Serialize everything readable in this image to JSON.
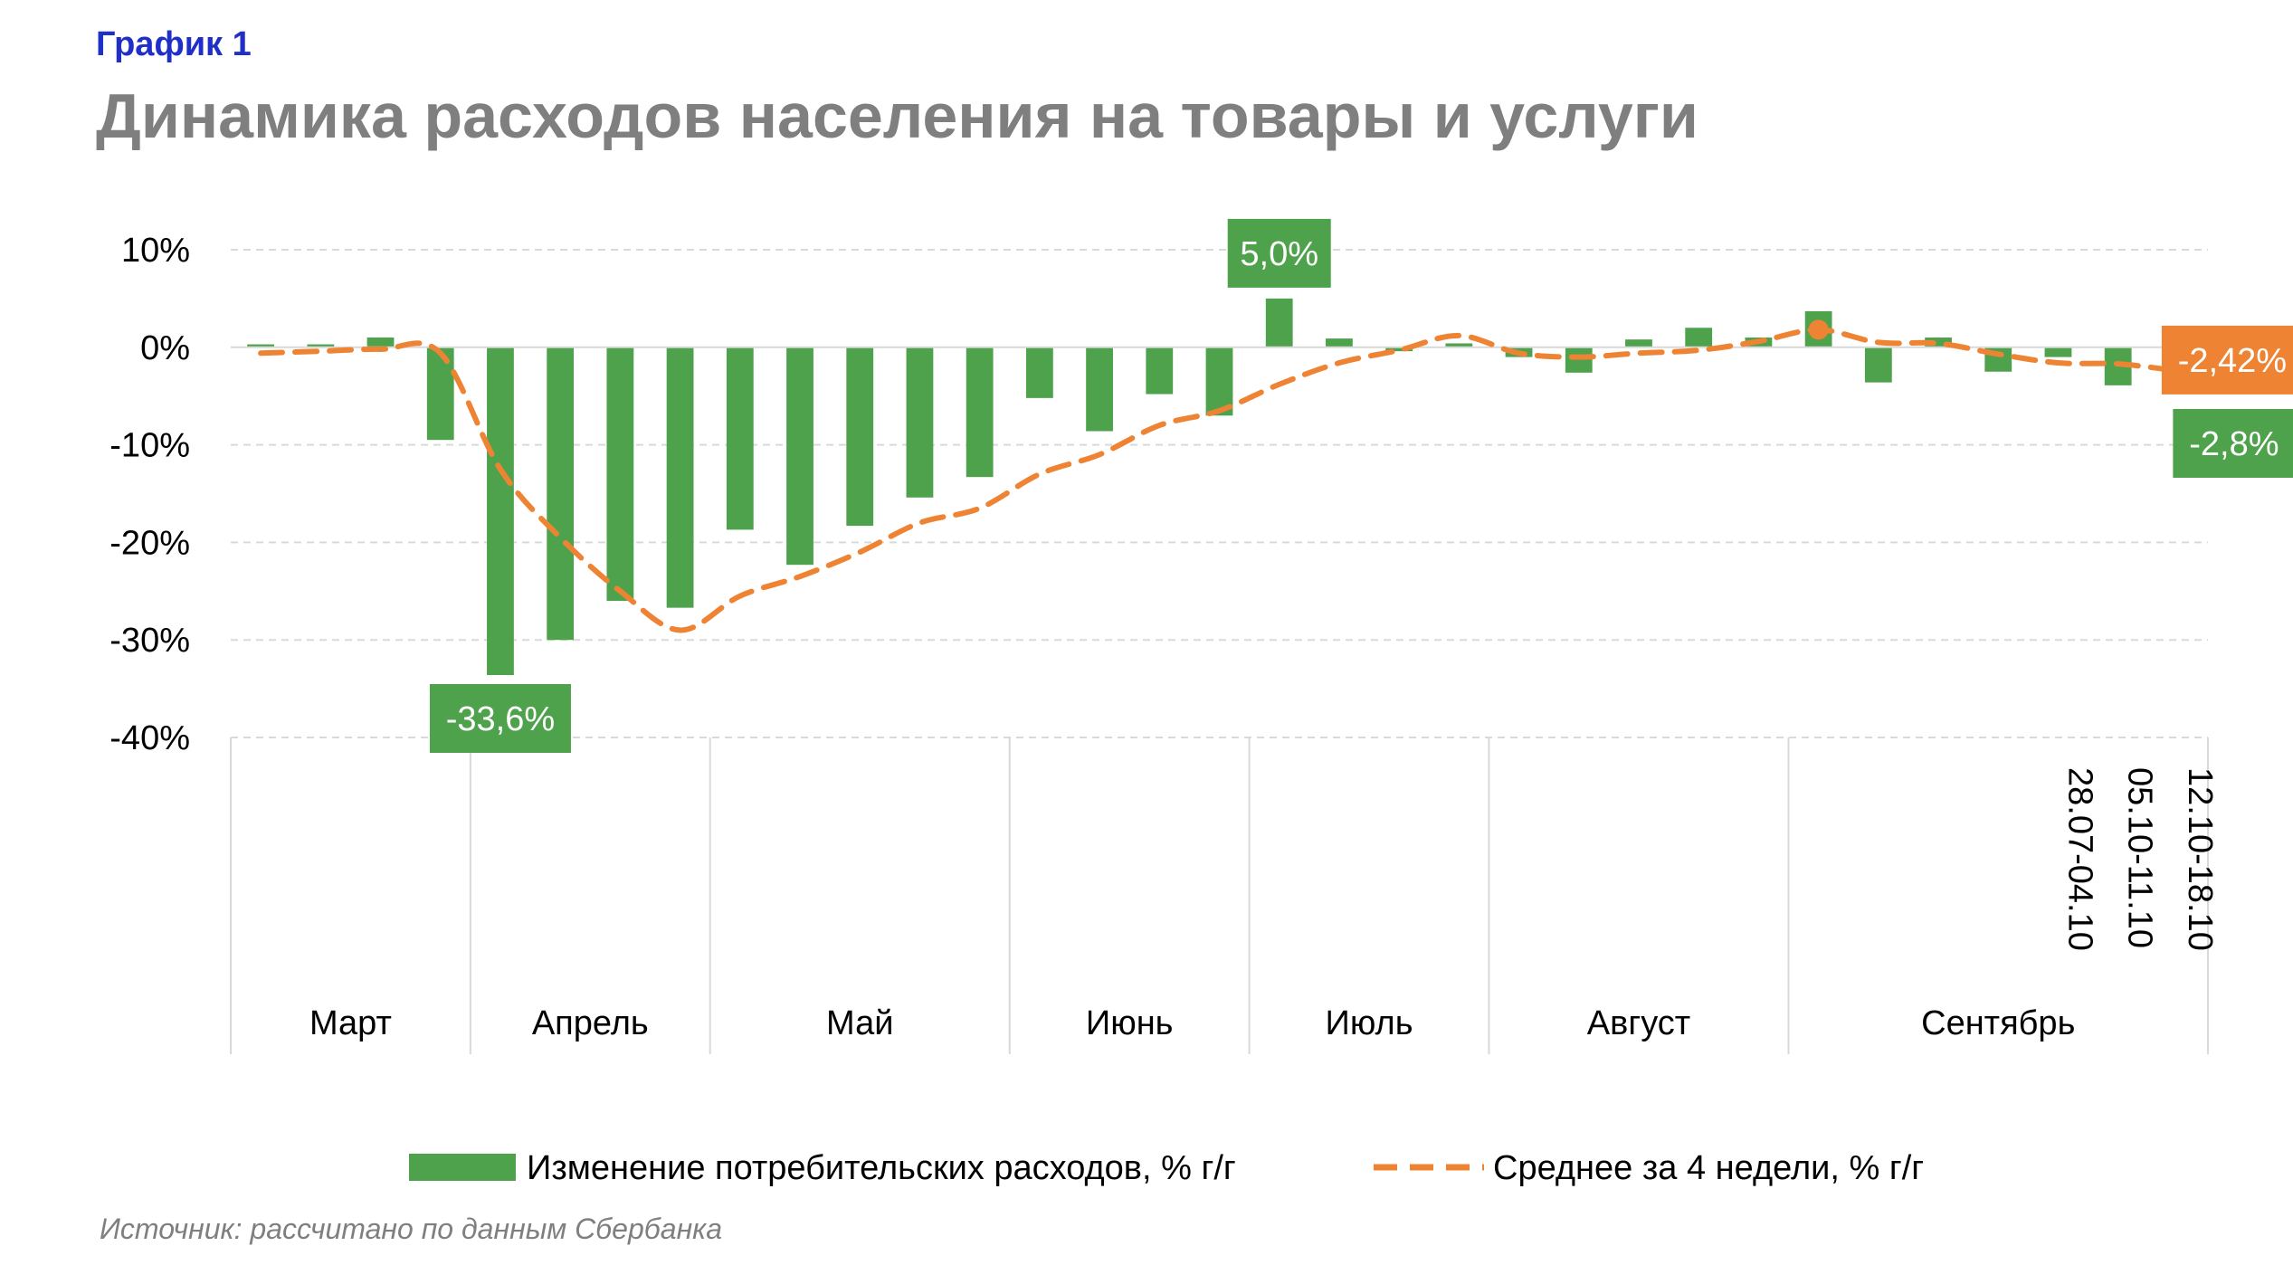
{
  "header": {
    "kicker": "График 1",
    "title": "Динамика расходов населения на товары и услуги"
  },
  "source": "Источник: рассчитано по данным Сбербанка",
  "colors": {
    "bar": "#4ea24b",
    "line": "#ee8433",
    "grid": "#d9d9d9",
    "axis": "#d9d9d9",
    "kicker": "#1f2fc7",
    "title": "#7f7f7f"
  },
  "chart_data": {
    "type": "bar",
    "title": "Динамика расходов населения на товары и услуги",
    "ylim": [
      -40,
      10
    ],
    "y_ticks": [
      "10%",
      "0%",
      "-10%",
      "-20%",
      "-30%",
      "-40%"
    ],
    "y_tick_values": [
      10,
      0,
      -10,
      -20,
      -30,
      -40
    ],
    "grid": true,
    "legend_position": "bottom",
    "months": [
      {
        "label": "Март",
        "weeks": 4
      },
      {
        "label": "Апрель",
        "weeks": 4
      },
      {
        "label": "Май",
        "weeks": 5
      },
      {
        "label": "Июнь",
        "weeks": 4
      },
      {
        "label": "Июль",
        "weeks": 4
      },
      {
        "label": "Август",
        "weeks": 5
      },
      {
        "label": "Сентябрь",
        "weeks": 7
      }
    ],
    "week_labels": [
      {
        "index": 30,
        "label": "28.07-04.10"
      },
      {
        "index": 31,
        "label": "05.10-11.10"
      },
      {
        "index": 32,
        "label": "12.10-18.10"
      }
    ],
    "series": [
      {
        "name": "Изменение потребительских расходов, % г/г",
        "kind": "bar",
        "values": [
          0.3,
          0.3,
          1.0,
          -9.5,
          -33.6,
          -30.0,
          -26.0,
          -26.7,
          -18.7,
          -22.3,
          -18.3,
          -15.4,
          -13.3,
          -5.2,
          -8.6,
          -4.8,
          -7.0,
          5.0,
          0.9,
          -0.4,
          0.4,
          -1.0,
          -2.6,
          0.8,
          2.0,
          1.0,
          3.7,
          -3.6,
          1.0,
          -2.5,
          -1.0,
          -3.9,
          -2.8
        ]
      },
      {
        "name": "Среднее за 4 недели, % г/г",
        "kind": "line",
        "values": [
          -0.6,
          -0.4,
          -0.2,
          -0.6,
          -12.5,
          -19.5,
          -25.0,
          -29.0,
          -25.5,
          -23.5,
          -21.0,
          -18.0,
          -16.5,
          -13.0,
          -11.0,
          -8.0,
          -6.5,
          -3.8,
          -1.6,
          -0.3,
          1.2,
          -0.6,
          -1.0,
          -0.6,
          -0.3,
          0.6,
          1.8,
          0.5,
          0.4,
          -0.7,
          -1.6,
          -1.7,
          -2.42
        ]
      }
    ],
    "data_labels": [
      {
        "series": 0,
        "index": 4,
        "text": "-33,6%"
      },
      {
        "series": 0,
        "index": 17,
        "text": "5,0%"
      },
      {
        "series": 1,
        "index": 32,
        "text": "-2,42%"
      },
      {
        "series": 0,
        "index": 32,
        "text": "-2,8%"
      }
    ]
  }
}
